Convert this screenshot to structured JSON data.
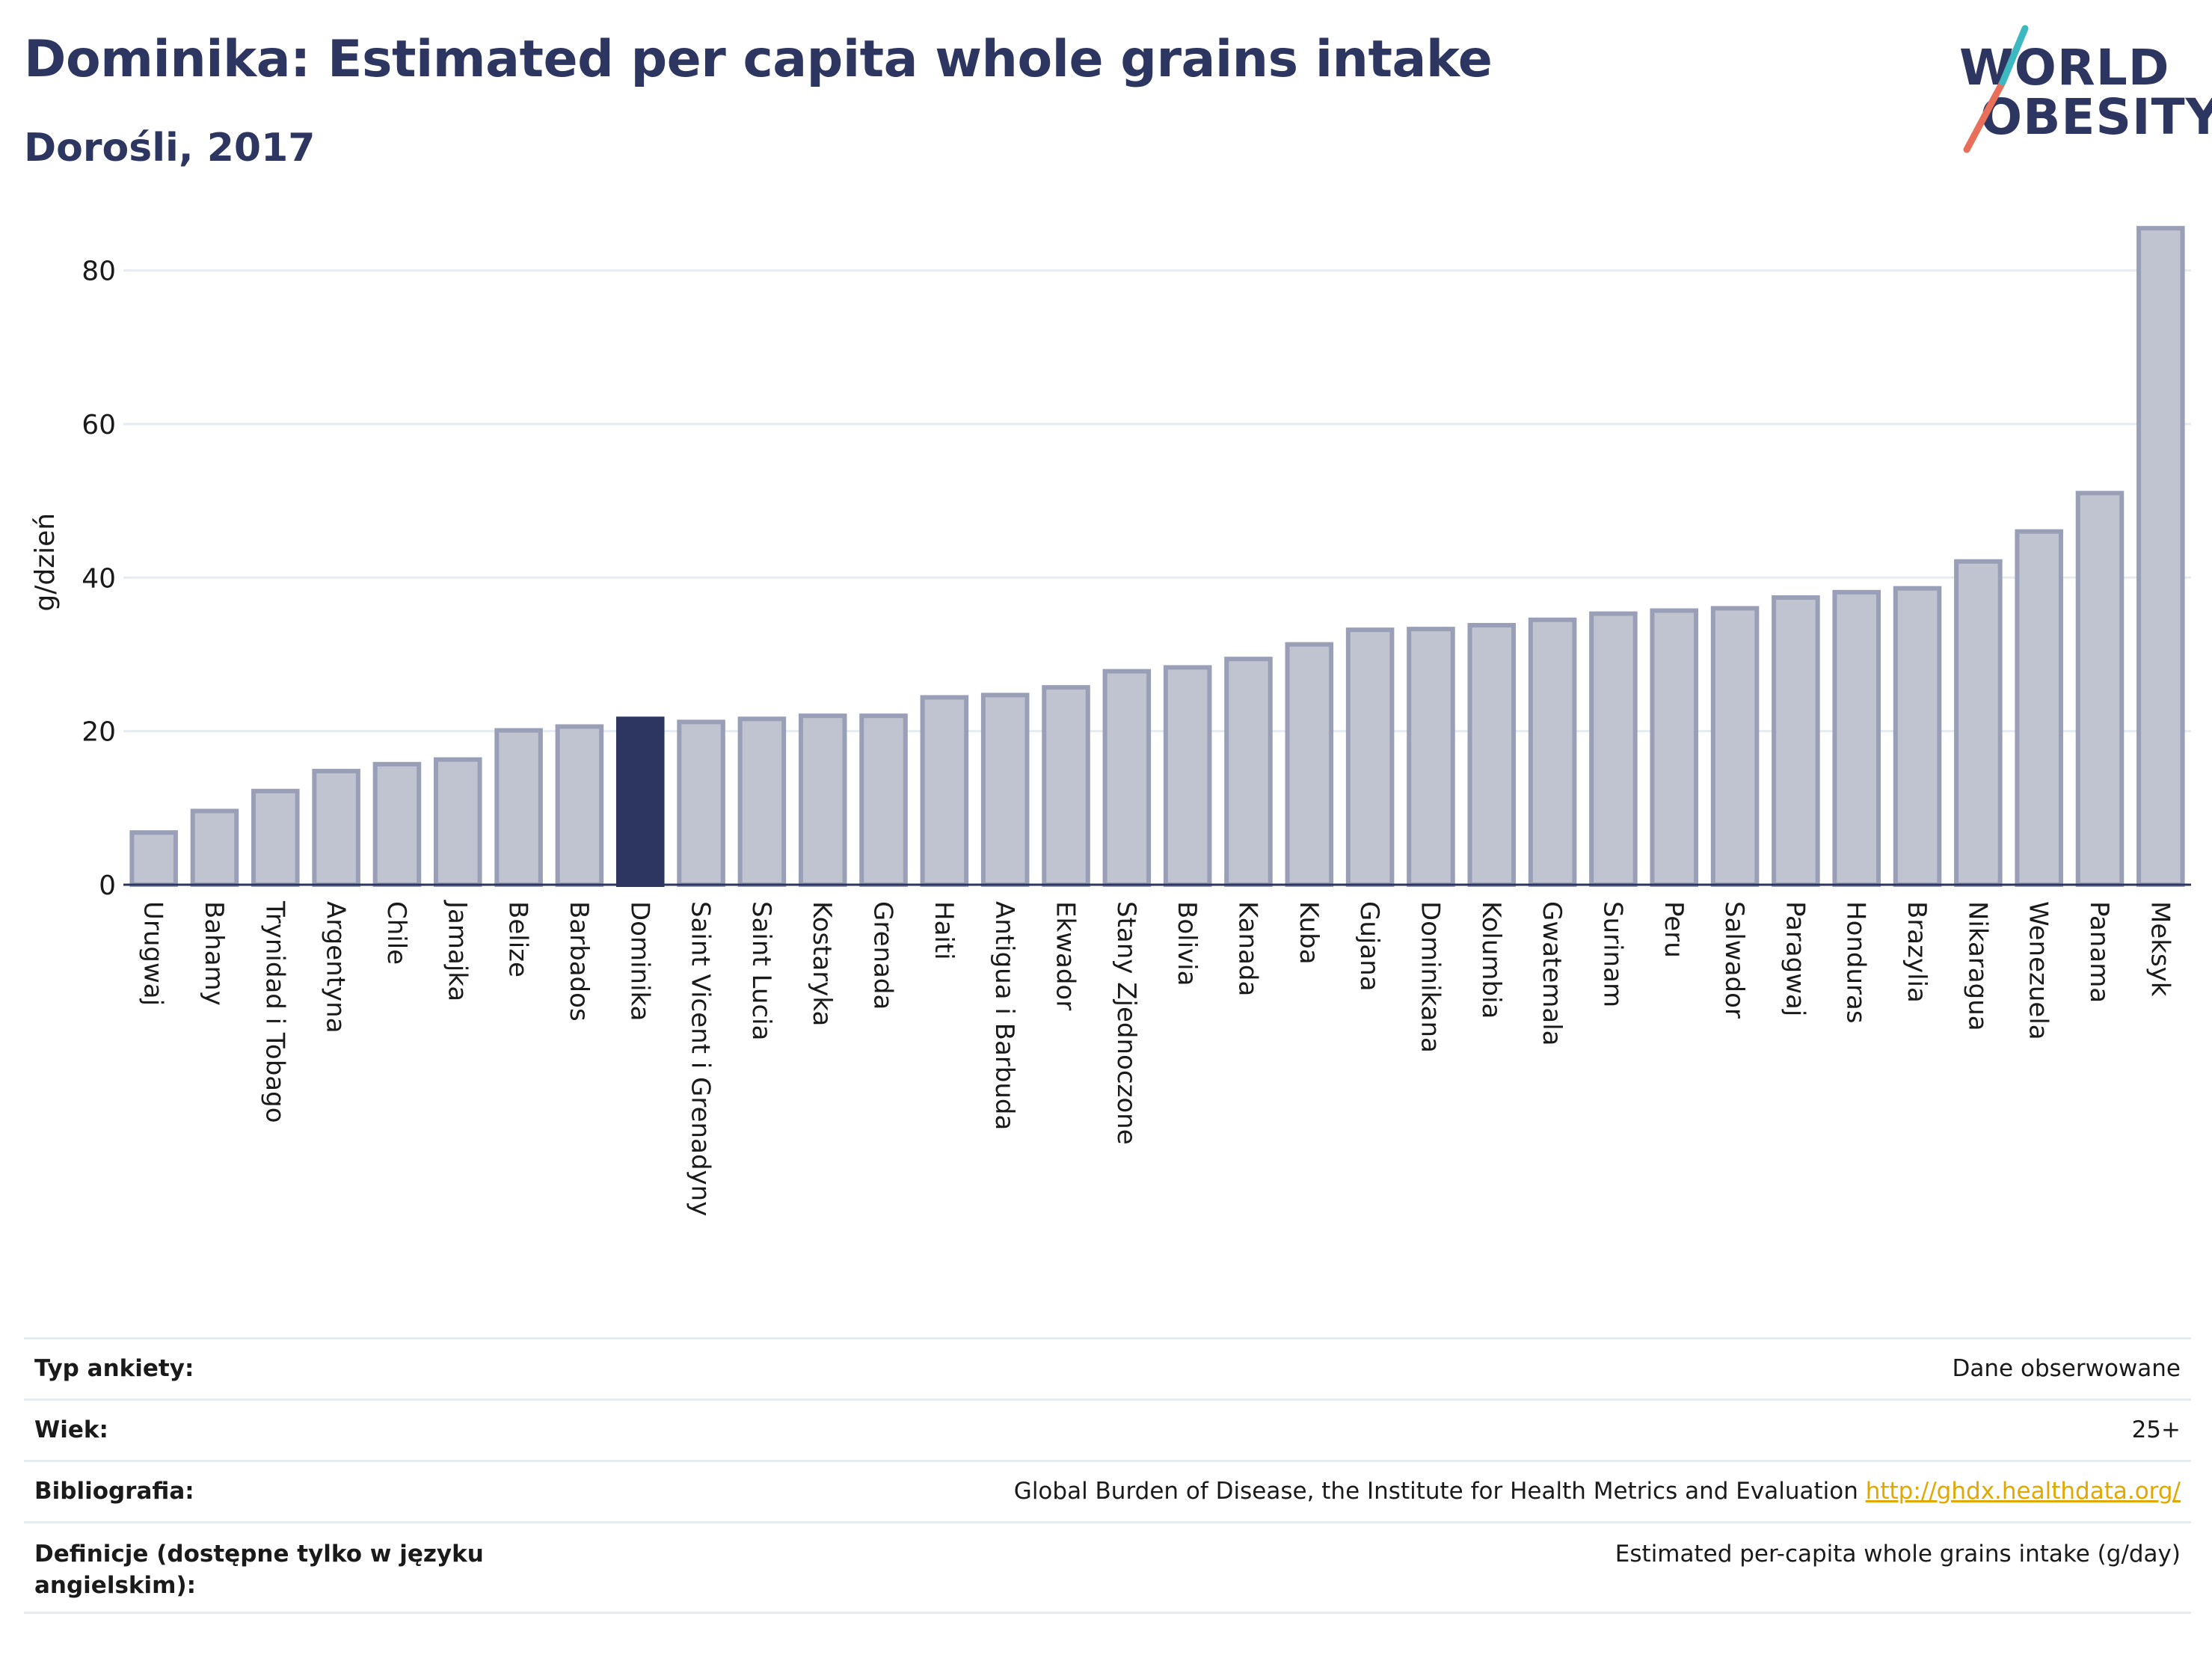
{
  "title": "Dominika: Estimated per capita whole grains intake",
  "subtitle": "Dorośli, 2017",
  "logo": {
    "line1": "WORLD",
    "line2": "OBESITY",
    "accent_colors": [
      "#e8705a",
      "#3cb8c0"
    ]
  },
  "colors": {
    "bar": "#c0c3d0",
    "bar_stroke": "#9a9fb8",
    "highlight": "#2d3660",
    "text": "#2d3660"
  },
  "chart_data": {
    "type": "bar",
    "ylabel": "g/dzień",
    "ylim": [
      0,
      86
    ],
    "yticks": [
      0,
      20,
      40,
      60,
      80
    ],
    "grid": true,
    "highlight": "Dominika",
    "categories": [
      "Urugwaj",
      "Bahamy",
      "Trynidad i Tobago",
      "Argentyna",
      "Chile",
      "Jamajka",
      "Belize",
      "Barbados",
      "Dominika",
      "Saint Vicent i Grenadyny",
      "Saint Lucia",
      "Kostaryka",
      "Grenada",
      "Haiti",
      "Antigua i Barbuda",
      "Ekwador",
      "Stany Zjednoczone",
      "Bolivia",
      "Kanada",
      "Kuba",
      "Gujana",
      "Dominikana",
      "Kolumbia",
      "Gwatemala",
      "Surinam",
      "Peru",
      "Salwador",
      "Paragwaj",
      "Honduras",
      "Brazylia",
      "Nikaragua",
      "Wenezuela",
      "Panama",
      "Meksyk"
    ],
    "values": [
      6.8,
      9.6,
      12.2,
      14.8,
      15.7,
      16.3,
      20.1,
      20.6,
      21.6,
      21.2,
      21.6,
      22.0,
      22.0,
      24.4,
      24.7,
      25.7,
      27.8,
      28.3,
      29.4,
      31.3,
      33.2,
      33.3,
      33.8,
      34.5,
      35.3,
      35.7,
      36.0,
      37.4,
      38.1,
      38.6,
      42.1,
      46.0,
      51.0,
      85.5
    ]
  },
  "meta": [
    {
      "label": "Typ ankiety:",
      "value": "Dane obserwowane"
    },
    {
      "label": "Wiek:",
      "value": "25+"
    },
    {
      "label": "Bibliografia:",
      "value": "Global Burden of Disease, the Institute for Health Metrics and Evaluation",
      "link": "http://ghdx.healthdata.org/"
    },
    {
      "label": "Definicje (dostępne tylko w języku angielskim):",
      "value": "Estimated per-capita whole grains intake (g/day)"
    }
  ]
}
